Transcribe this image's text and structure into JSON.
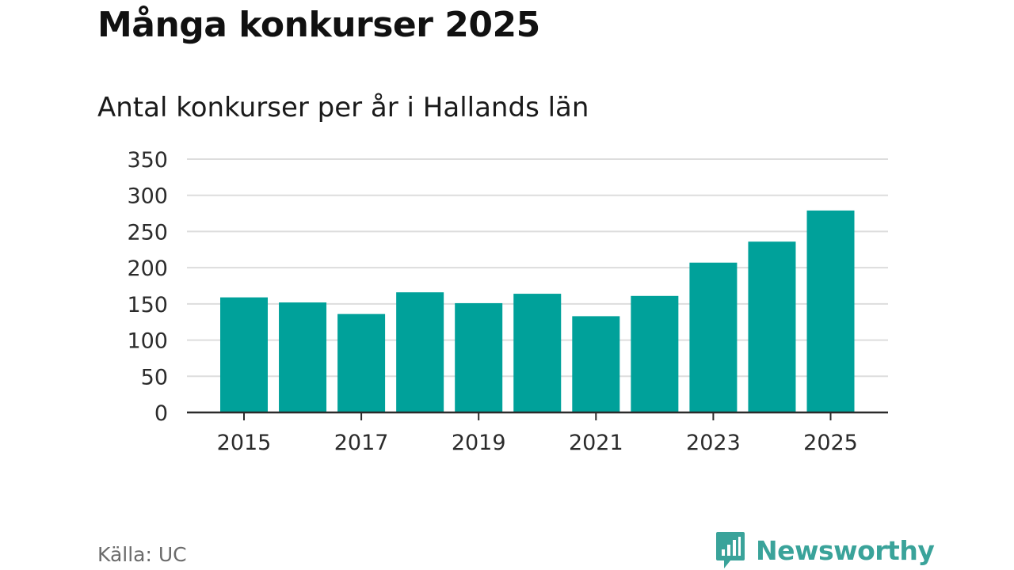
{
  "chart_data": {
    "type": "bar",
    "title": "Många konkurser 2025",
    "subtitle": "Antal konkurser per år i Hallands län",
    "categories": [
      "2015",
      "2016",
      "2017",
      "2018",
      "2019",
      "2020",
      "2021",
      "2022",
      "2023",
      "2024",
      "2025"
    ],
    "values": [
      159,
      152,
      136,
      166,
      151,
      164,
      133,
      161,
      207,
      236,
      279
    ],
    "x_tick_labels": [
      "2015",
      "2017",
      "2019",
      "2021",
      "2023",
      "2025"
    ],
    "y_ticks": [
      "0",
      "50",
      "100",
      "150",
      "200",
      "250",
      "300",
      "350"
    ],
    "ylim": [
      0,
      350
    ],
    "xlabel": "",
    "ylabel": "",
    "grid": true,
    "legend": "none",
    "bar_color": "#00a19a"
  },
  "source": "Källa: UC",
  "brand": {
    "name": "Newsworthy",
    "icon": "bar-chart-speech-bubble-icon",
    "color": "#3aa39a"
  }
}
